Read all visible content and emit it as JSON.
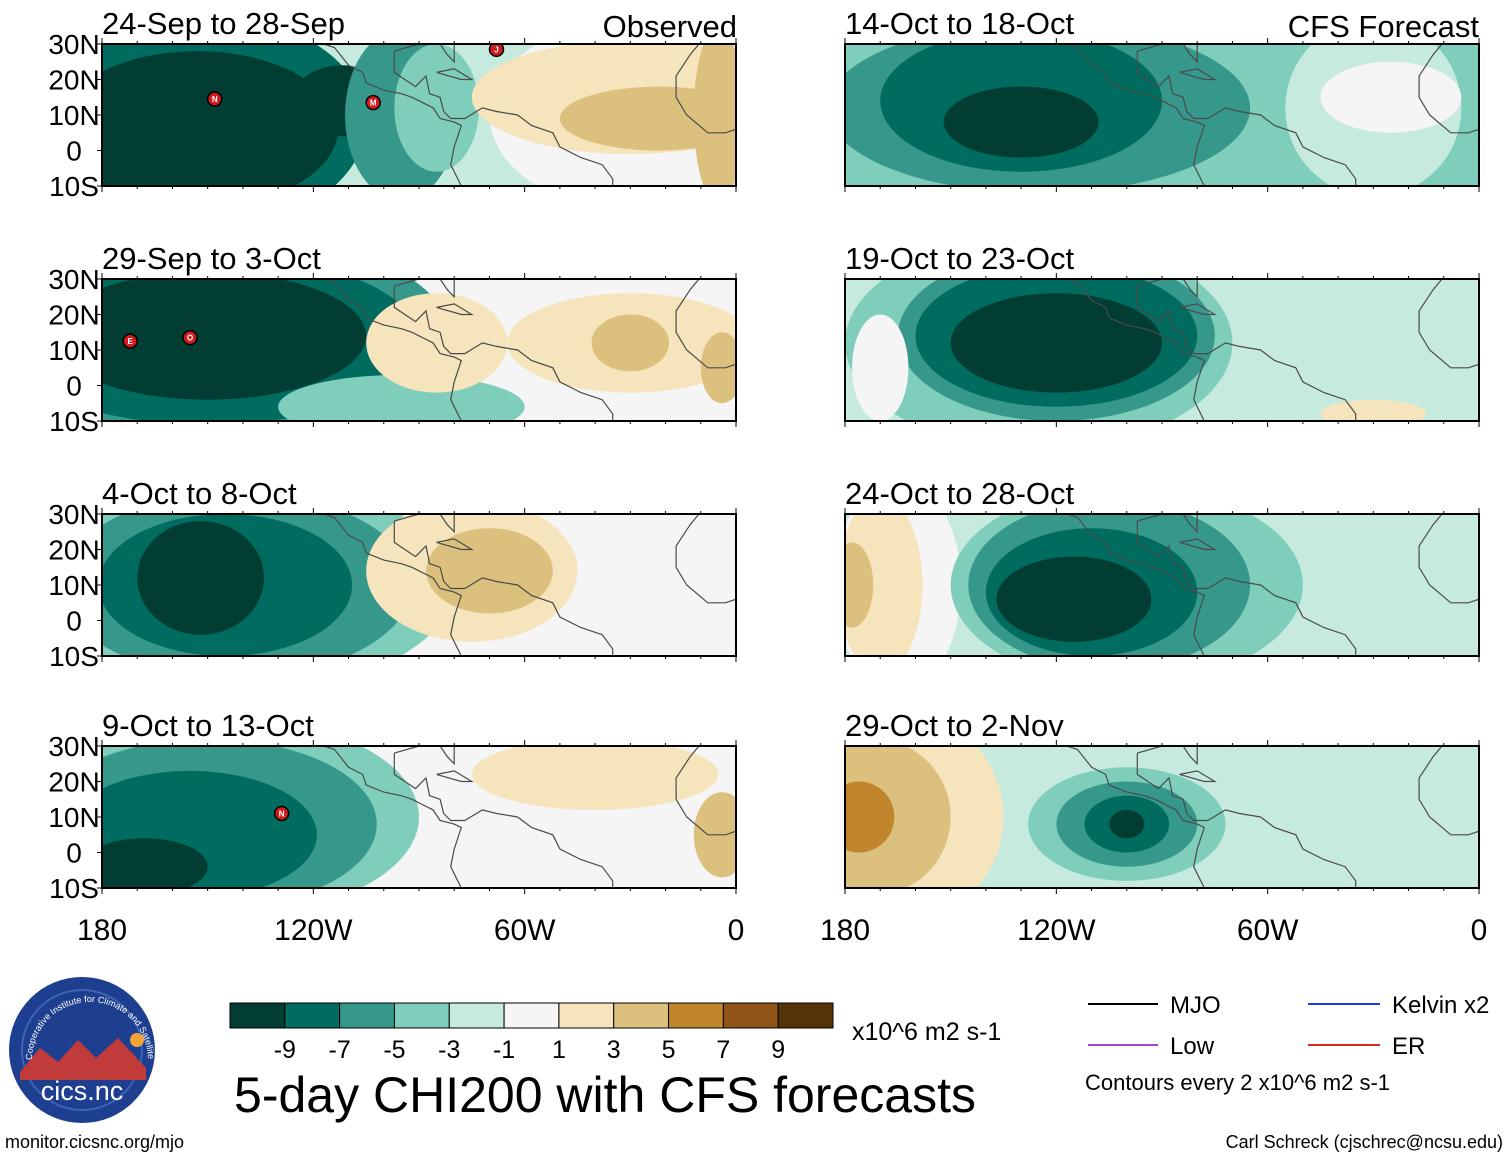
{
  "header": {
    "left_label": "Observed",
    "right_label": "CFS Forecast"
  },
  "chart_data": {
    "type": "heatmap",
    "title": "5-day CHI200 with CFS forecasts",
    "units": "x10^6 m2 s-1",
    "lat_ticks": [
      "30N",
      "20N",
      "10N",
      "0",
      "10S"
    ],
    "lon_ticks": [
      "180",
      "120W",
      "60W",
      "0"
    ],
    "xlim": [
      -180,
      0
    ],
    "ylim": [
      -10,
      30
    ],
    "colorbar": {
      "levels": [
        "-9",
        "-7",
        "-5",
        "-3",
        "-1",
        "1",
        "3",
        "5",
        "7",
        "9"
      ],
      "colors": [
        "#023d33",
        "#006b5f",
        "#36978b",
        "#7fcdbb",
        "#c7eadf",
        "#f5f5f5",
        "#f5e4bc",
        "#dcc17e",
        "#c0852d",
        "#8f5416",
        "#553308"
      ]
    },
    "contour_note": "Contours every 2 x10^6 m2 s-1",
    "panels": [
      {
        "label": "24-Sep to 28-Sep",
        "group": "observed",
        "bg": "#c7eadf",
        "blobs": [
          {
            "lon": -150,
            "lat": 8,
            "rx": 45,
            "ry": 30,
            "color": "#006b5f"
          },
          {
            "lon": -153,
            "lat": 6,
            "rx": 40,
            "ry": 22,
            "color": "#023d33"
          },
          {
            "lon": -112,
            "lat": 14,
            "rx": 14,
            "ry": 10,
            "color": "#023d33"
          },
          {
            "lon": -95,
            "lat": 10,
            "rx": 16,
            "ry": 24,
            "color": "#36978b"
          },
          {
            "lon": -85,
            "lat": 12,
            "rx": 12,
            "ry": 18,
            "color": "#7fcdbb"
          },
          {
            "lon": -25,
            "lat": 10,
            "rx": 45,
            "ry": 28,
            "color": "#f5f5f5"
          },
          {
            "lon": -30,
            "lat": 15,
            "rx": 45,
            "ry": 16,
            "color": "#f5e4bc"
          },
          {
            "lon": -22,
            "lat": 9,
            "rx": 28,
            "ry": 9,
            "color": "#dcc17e"
          },
          {
            "lon": -5,
            "lat": 10,
            "rx": 7,
            "ry": 25,
            "color": "#dcc17e"
          }
        ],
        "markers": [
          {
            "lon": -148,
            "lat": 14.5,
            "text": "N"
          },
          {
            "lon": -103,
            "lat": 13.5,
            "text": "M"
          },
          {
            "lon": -68,
            "lat": 28.5,
            "text": "J"
          }
        ]
      },
      {
        "label": "29-Sep to 3-Oct",
        "group": "observed",
        "bg": "#f5f5f5",
        "blobs": [
          {
            "lon": -150,
            "lat": 12,
            "rx": 70,
            "ry": 32,
            "color": "#36978b"
          },
          {
            "lon": -150,
            "lat": 13,
            "rx": 60,
            "ry": 24,
            "color": "#006b5f"
          },
          {
            "lon": -150,
            "lat": 14,
            "rx": 45,
            "ry": 18,
            "color": "#023d33"
          },
          {
            "lon": -95,
            "lat": -6,
            "rx": 35,
            "ry": 9,
            "color": "#7fcdbb"
          },
          {
            "lon": -85,
            "lat": 12,
            "rx": 20,
            "ry": 14,
            "color": "#f5e4bc"
          },
          {
            "lon": -30,
            "lat": 12,
            "rx": 35,
            "ry": 14,
            "color": "#f5e4bc"
          },
          {
            "lon": -30,
            "lat": 12,
            "rx": 11,
            "ry": 8,
            "color": "#dcc17e"
          },
          {
            "lon": -4,
            "lat": 5,
            "rx": 6,
            "ry": 10,
            "color": "#dcc17e"
          }
        ],
        "markers": [
          {
            "lon": -172,
            "lat": 12.5,
            "text": "E"
          },
          {
            "lon": -155,
            "lat": 13.5,
            "text": "O"
          }
        ]
      },
      {
        "label": "4-Oct to 8-Oct",
        "group": "observed",
        "bg": "#f5f5f5",
        "blobs": [
          {
            "lon": -140,
            "lat": 10,
            "rx": 60,
            "ry": 30,
            "color": "#7fcdbb"
          },
          {
            "lon": -142,
            "lat": 10,
            "rx": 50,
            "ry": 26,
            "color": "#36978b"
          },
          {
            "lon": -145,
            "lat": 10,
            "rx": 36,
            "ry": 20,
            "color": "#006b5f"
          },
          {
            "lon": -152,
            "lat": 12,
            "rx": 18,
            "ry": 16,
            "color": "#023d33"
          },
          {
            "lon": -75,
            "lat": 14,
            "rx": 30,
            "ry": 20,
            "color": "#f5e4bc"
          },
          {
            "lon": -70,
            "lat": 14,
            "rx": 18,
            "ry": 12,
            "color": "#dcc17e"
          }
        ],
        "markers": []
      },
      {
        "label": "9-Oct to 13-Oct",
        "group": "observed",
        "bg": "#f5f5f5",
        "blobs": [
          {
            "lon": -145,
            "lat": 10,
            "rx": 55,
            "ry": 28,
            "color": "#7fcdbb"
          },
          {
            "lon": -150,
            "lat": 8,
            "rx": 48,
            "ry": 24,
            "color": "#36978b"
          },
          {
            "lon": -155,
            "lat": 5,
            "rx": 36,
            "ry": 18,
            "color": "#006b5f"
          },
          {
            "lon": -168,
            "lat": -4,
            "rx": 18,
            "ry": 8,
            "color": "#023d33"
          },
          {
            "lon": -40,
            "lat": 22,
            "rx": 35,
            "ry": 10,
            "color": "#f5e4bc"
          },
          {
            "lon": -4,
            "lat": 5,
            "rx": 8,
            "ry": 12,
            "color": "#dcc17e"
          }
        ],
        "markers": [
          {
            "lon": -129,
            "lat": 11,
            "text": "N"
          }
        ]
      },
      {
        "label": "14-Oct to 18-Oct",
        "group": "forecast",
        "bg": "#7fcdbb",
        "blobs": [
          {
            "lon": -125,
            "lat": 12,
            "rx": 60,
            "ry": 24,
            "color": "#36978b"
          },
          {
            "lon": -130,
            "lat": 14,
            "rx": 40,
            "ry": 20,
            "color": "#006b5f"
          },
          {
            "lon": -130,
            "lat": 8,
            "rx": 22,
            "ry": 10,
            "color": "#023d33"
          },
          {
            "lon": -30,
            "lat": 12,
            "rx": 25,
            "ry": 25,
            "color": "#c7eadf"
          },
          {
            "lon": -25,
            "lat": 15,
            "rx": 20,
            "ry": 10,
            "color": "#f5f5f5"
          }
        ],
        "markers": []
      },
      {
        "label": "19-Oct to 23-Oct",
        "group": "forecast",
        "bg": "#c7eadf",
        "blobs": [
          {
            "lon": -125,
            "lat": 12,
            "rx": 55,
            "ry": 30,
            "color": "#7fcdbb"
          },
          {
            "lon": -120,
            "lat": 14,
            "rx": 45,
            "ry": 24,
            "color": "#36978b"
          },
          {
            "lon": -120,
            "lat": 14,
            "rx": 40,
            "ry": 20,
            "color": "#006b5f"
          },
          {
            "lon": -120,
            "lat": 12,
            "rx": 30,
            "ry": 14,
            "color": "#023d33"
          },
          {
            "lon": -170,
            "lat": 5,
            "rx": 8,
            "ry": 15,
            "color": "#f5f5f5"
          },
          {
            "lon": -30,
            "lat": -8,
            "rx": 15,
            "ry": 4,
            "color": "#f5e4bc"
          }
        ],
        "markers": []
      },
      {
        "label": "24-Oct to 28-Oct",
        "group": "forecast",
        "bg": "#c7eadf",
        "blobs": [
          {
            "lon": -165,
            "lat": 10,
            "rx": 18,
            "ry": 30,
            "color": "#f5f5f5"
          },
          {
            "lon": -170,
            "lat": 10,
            "rx": 12,
            "ry": 25,
            "color": "#f5e4bc"
          },
          {
            "lon": -178,
            "lat": 10,
            "rx": 6,
            "ry": 12,
            "color": "#dcc17e"
          },
          {
            "lon": -100,
            "lat": 10,
            "rx": 50,
            "ry": 28,
            "color": "#7fcdbb"
          },
          {
            "lon": -105,
            "lat": 10,
            "rx": 40,
            "ry": 24,
            "color": "#36978b"
          },
          {
            "lon": -110,
            "lat": 8,
            "rx": 30,
            "ry": 18,
            "color": "#006b5f"
          },
          {
            "lon": -115,
            "lat": 6,
            "rx": 22,
            "ry": 12,
            "color": "#023d33"
          }
        ],
        "markers": []
      },
      {
        "label": "29-Oct to 2-Nov",
        "group": "forecast",
        "bg": "#c7eadf",
        "blobs": [
          {
            "lon": -165,
            "lat": 10,
            "rx": 30,
            "ry": 30,
            "color": "#f5e4bc"
          },
          {
            "lon": -172,
            "lat": 10,
            "rx": 22,
            "ry": 22,
            "color": "#dcc17e"
          },
          {
            "lon": -176,
            "lat": 10,
            "rx": 10,
            "ry": 10,
            "color": "#c0852d"
          },
          {
            "lon": -100,
            "lat": 8,
            "rx": 28,
            "ry": 16,
            "color": "#7fcdbb"
          },
          {
            "lon": -100,
            "lat": 8,
            "rx": 20,
            "ry": 12,
            "color": "#36978b"
          },
          {
            "lon": -100,
            "lat": 8,
            "rx": 12,
            "ry": 8,
            "color": "#006b5f"
          },
          {
            "lon": -100,
            "lat": 8,
            "rx": 5,
            "ry": 4,
            "color": "#023d33"
          }
        ],
        "markers": []
      }
    ]
  },
  "legend": {
    "items": [
      {
        "label": "MJO",
        "color": "#000000"
      },
      {
        "label": "Kelvin x2",
        "color": "#1f3bd6"
      },
      {
        "label": "Low",
        "color": "#a245d9"
      },
      {
        "label": "ER",
        "color": "#d62a1f"
      }
    ]
  },
  "logo": {
    "arc_text": "Cooperative Institute for Climate and Satellites",
    "name": "cics.nc"
  },
  "footer": {
    "url": "monitor.cicsnc.org/mjo",
    "credit": "Carl Schreck (cjschrec@ncsu.edu)"
  }
}
